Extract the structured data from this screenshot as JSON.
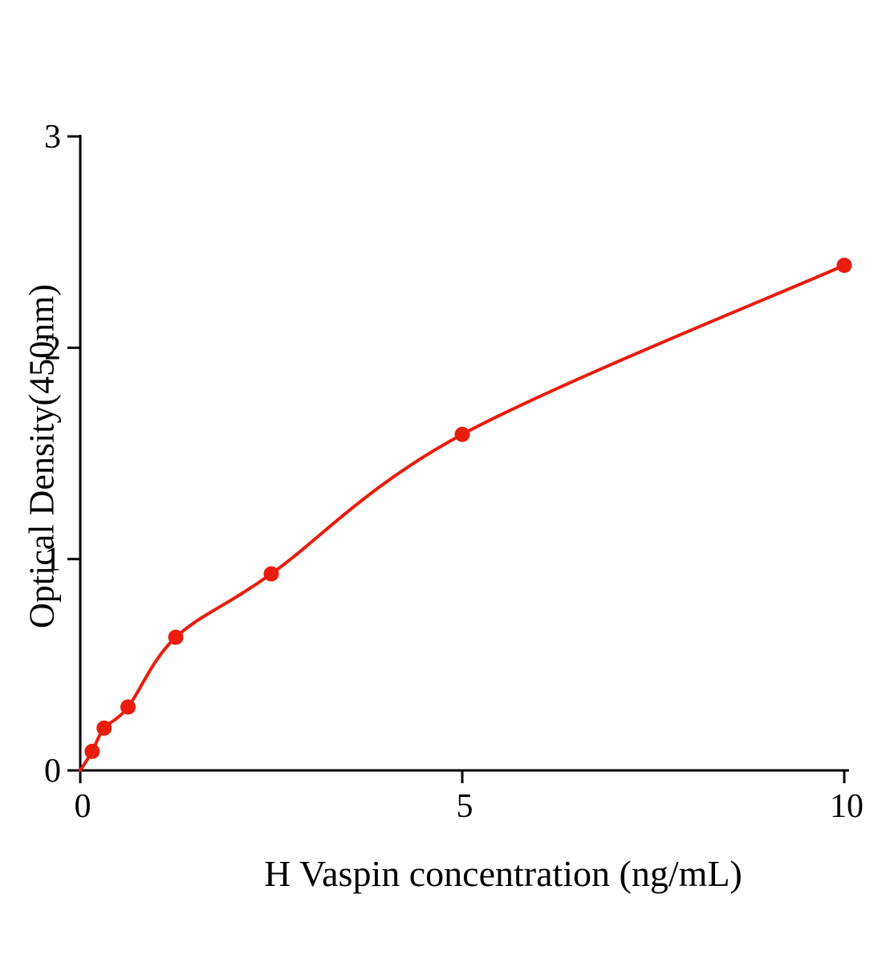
{
  "chart_data": {
    "type": "scatter",
    "title": "",
    "xlabel": "H Vaspin concentration (ng/mL)",
    "ylabel": "Optical Density(450nm)",
    "x": [
      0.156,
      0.3125,
      0.625,
      1.25,
      2.5,
      5,
      10
    ],
    "y": [
      0.09,
      0.2,
      0.3,
      0.63,
      0.93,
      1.59,
      2.39
    ],
    "curve_start_x": 0,
    "curve_start_y": 0,
    "xlim": [
      0,
      10
    ],
    "ylim": [
      0,
      3
    ],
    "xticks": [
      0,
      5,
      10
    ],
    "yticks": [
      0,
      1,
      2,
      3
    ],
    "grid": false,
    "legend_position": "none",
    "point_color": "#ea1c0d",
    "line_color": "#ea1c0d",
    "axis_color": "#000000"
  }
}
